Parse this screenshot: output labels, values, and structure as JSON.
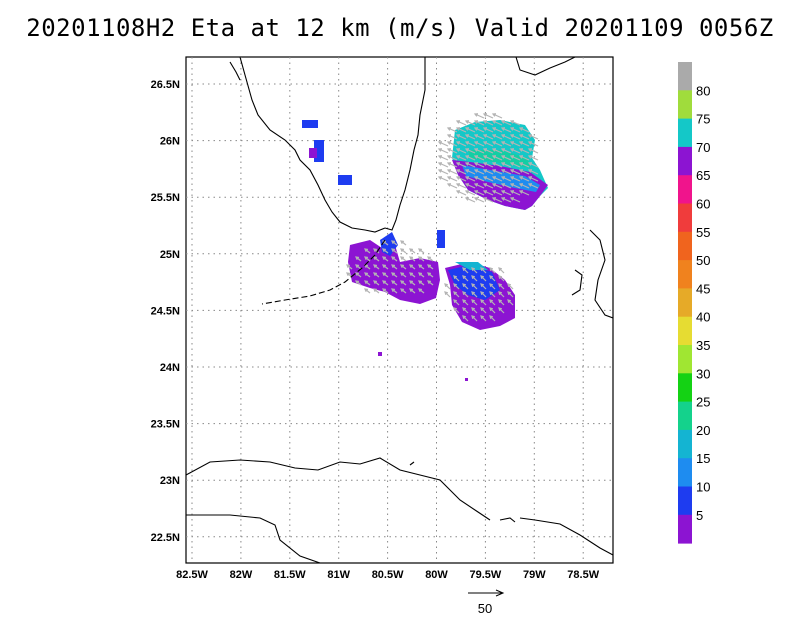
{
  "title": "20201108H2 Eta at 12 km (m/s) Valid 20201109  0056Z",
  "map": {
    "lat_labels": [
      "26.5N",
      "26N",
      "25.5N",
      "25N",
      "24.5N",
      "24N",
      "23.5N",
      "23N",
      "22.5N"
    ],
    "lon_labels": [
      "82.5W",
      "82W",
      "81.5W",
      "81W",
      "80.5W",
      "80W",
      "79.5W",
      "79W",
      "78.5W"
    ]
  },
  "colorbar": {
    "labels": [
      "80",
      "75",
      "70",
      "65",
      "60",
      "55",
      "50",
      "45",
      "40",
      "35",
      "30",
      "25",
      "20",
      "15",
      "10",
      "5"
    ],
    "colors": [
      "#aaaaaa",
      "#a0dc3c",
      "#14c8c8",
      "#8c14d2",
      "#f0148c",
      "#f03c3c",
      "#f0641e",
      "#f0821e",
      "#e6aa28",
      "#e6dc32",
      "#a0e632",
      "#14d214",
      "#14d28c",
      "#14b4d2",
      "#1e8cf0",
      "#1e3cf0",
      "#8c14d2"
    ]
  },
  "scale_vector": {
    "label": "50"
  },
  "colors": {
    "coast": "#000000",
    "grid": "#888888",
    "arrow": "#b4b4b4"
  }
}
